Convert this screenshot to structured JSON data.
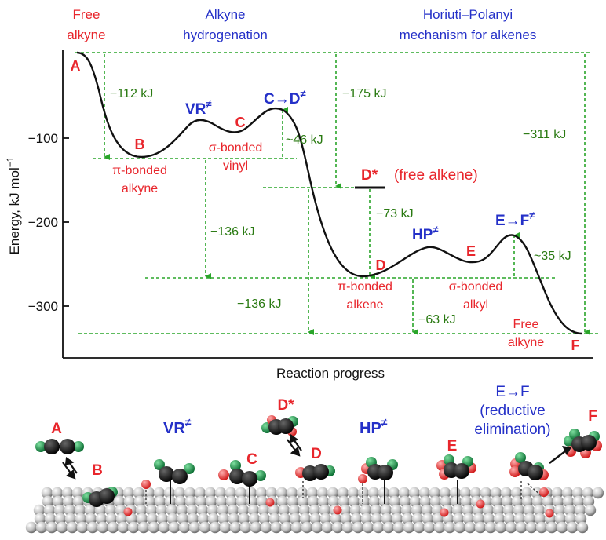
{
  "top_headers": {
    "free_alkyne": [
      "Free",
      "alkyne"
    ],
    "alkyne_hydrogenation": [
      "Alkyne",
      "hydrogenation"
    ],
    "horiuti": [
      "Horiuti–Polanyi",
      "mechanism for alkenes"
    ]
  },
  "axes": {
    "ylabel": "Energy, kJ mol",
    "ylabel_sup": "−1",
    "xlabel": "Reaction progress",
    "yticks": [
      "−100",
      "−200",
      "−300"
    ]
  },
  "states": {
    "A": "A",
    "B": "B",
    "VR": "VR",
    "C": "C",
    "CD": "C→D",
    "Dstar": "D*",
    "Dstar_note": "(free alkene)",
    "D": "D",
    "HP": "HP",
    "E": "E",
    "EF": "E→F",
    "F": "F",
    "ts_mark": "≠"
  },
  "state_notes": {
    "pi_alkyne": [
      "π-bonded",
      "alkyne"
    ],
    "sigma_vinyl": [
      "σ-bonded",
      "vinyl"
    ],
    "pi_alkene": [
      "π-bonded",
      "alkene"
    ],
    "sigma_alkyl": [
      "σ-bonded",
      "alkyl"
    ],
    "free_alkyne_end": [
      "Free",
      "alkyne"
    ]
  },
  "energies": {
    "m112": "−112 kJ",
    "m175": "−175 kJ",
    "a46": "~46 kJ",
    "m311": "−311 kJ",
    "m73": "−73 kJ",
    "m136a": "−136 kJ",
    "m136b": "−136 kJ",
    "a35": "~35 kJ",
    "m63": "−63 kJ"
  },
  "bottom": {
    "A": "A",
    "B": "B",
    "VR": "VR",
    "C": "C",
    "Dstar": "D*",
    "D": "D",
    "HP": "HP",
    "E": "E",
    "EF": "E→F",
    "reductive": [
      "(reductive",
      "elimination)"
    ],
    "F": "F",
    "ts_mark": "≠"
  },
  "colors": {
    "state_red": "#e8262c",
    "state_blue": "#2430c8",
    "energy_green": "#2a7a12",
    "guide_green": "#2aa52a",
    "carbon": "#111111",
    "hydrogen_green": "#1f8f4a",
    "hydrogen_red": "#e8262c",
    "surface": "#b8b8b8"
  }
}
